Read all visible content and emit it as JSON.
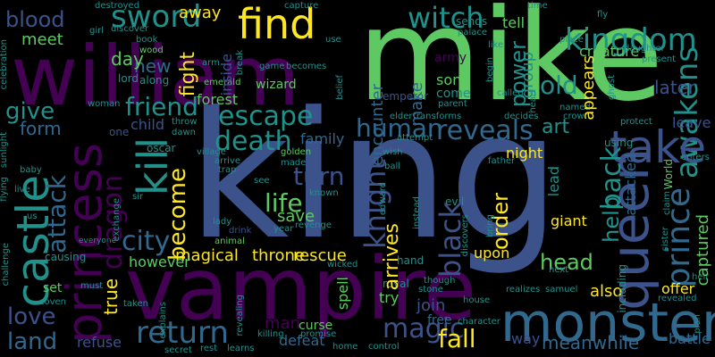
{
  "palette": {
    "background": "#000000",
    "dark_purple": "#440154",
    "indigo": "#3b528b",
    "blue": "#31688e",
    "teal": "#21918c",
    "green": "#35b779",
    "lime": "#5ec962",
    "yellow": "#fde725"
  },
  "words": {
    "king": "king",
    "mike": "mike",
    "william": "william",
    "vampire": "vampire",
    "monster": "monster",
    "princess": "princess",
    "castle": "castle",
    "queen": "queen",
    "kill": "kill",
    "take": "take",
    "find": "find",
    "kingdom": "kingdom",
    "sword": "sword",
    "witch": "witch",
    "away": "away",
    "escape": "escape",
    "death": "death",
    "reveals": "reveals",
    "return": "return",
    "human": "human",
    "life": "life",
    "turn": "turn",
    "city": "city",
    "friend": "friend",
    "magic": "magic",
    "fall": "fall",
    "black": "black",
    "prince": "prince",
    "knight": "knight",
    "dragon": "dragon",
    "attack": "attack",
    "become": "become",
    "help": "help",
    "back": "back",
    "order": "order",
    "blood": "blood",
    "meet": "meet",
    "give": "give",
    "form": "form",
    "love": "love",
    "land": "land",
    "power": "power",
    "old": "old",
    "arrives": "arrives",
    "save": "save",
    "fight": "fight",
    "meanwhile": "meanwhile",
    "captured": "captured",
    "head": "head",
    "awakens": "awakens",
    "rescue": "rescue",
    "throne": "throne",
    "magical": "magical",
    "true": "true",
    "offer": "offer",
    "also": "also",
    "later": "later",
    "art": "art",
    "new": "new",
    "day": "day",
    "forest": "forest",
    "child": "child",
    "family": "family",
    "join": "join",
    "man": "man",
    "upon": "upon",
    "giant": "giant",
    "night": "night",
    "however": "however",
    "defeat": "defeat",
    "free": "free",
    "curse": "curse",
    "battle": "battle",
    "refuse": "refuse",
    "way": "way",
    "creature": "creature",
    "group": "group",
    "appears": "appears",
    "tell": "tell",
    "son": "son",
    "come": "come",
    "army": "army",
    "encounter": "encounter",
    "make": "make",
    "inside": "inside",
    "wizard": "wizard",
    "spell": "spell",
    "try": "try",
    "leave": "leave",
    "set": "set",
    "attacked": "attacked",
    "lead": "lead",
    "including": "including",
    "emperor": "emperor",
    "lord": "lord",
    "along": "along",
    "oscar": "oscar",
    "sends": "sends",
    "hand": "hand",
    "evil": "evil",
    "transforms": "transforms",
    "parent": "parent",
    "world": "World",
    "power2": "power",
    "capture": "capture",
    "destroyed": "destroyed",
    "girl": "girl",
    "discover": "discover",
    "book": "book",
    "wood": "wood",
    "arm": "arm",
    "emerald": "emerald",
    "woman": "woman",
    "one": "one",
    "celebration": "celebration",
    "sunlight": "sunlight",
    "flying": "flying",
    "baby": "baby",
    "live": "live",
    "us": "us",
    "challenge": "challenge",
    "causing": "causing",
    "must": "must",
    "coven": "coven",
    "taken": "taken",
    "explains": "explains",
    "secret": "secret",
    "rest": "rest",
    "learns": "learns",
    "killing": "killing",
    "promise": "promise",
    "revealing": "revealing",
    "home": "home",
    "control": "control",
    "character": "character",
    "house": "house",
    "stone": "stone",
    "though": "though",
    "royal": "royal",
    "wicked": "wicked",
    "revenge": "revenge",
    "animal": "animal",
    "year": "year",
    "drink": "drink",
    "lady": "lady",
    "trap": "trap",
    "arrive": "arrive",
    "village": "village",
    "sir": "sir",
    "dawn": "dawn",
    "throw": "throw",
    "exchange": "exchange",
    "made": "made",
    "golden": "golden",
    "see": "see",
    "known": "known",
    "wish": "wish",
    "ball": "ball",
    "edward": "edward",
    "instead": "instead",
    "discovers": "discovers",
    "bring": "bring",
    "attempt": "attempt",
    "father": "father",
    "elder": "elder",
    "belief": "belief",
    "palace": "palace",
    "begin": "begin",
    "called": "called",
    "decides": "decides",
    "like": "like",
    "game": "game",
    "becomes": "becomes",
    "use": "use",
    "break": "break",
    "fly": "fly",
    "place": "place",
    "daughter": "daughter",
    "time": "time",
    "ghost": "ghost",
    "heart": "heart",
    "crown": "crown",
    "named": "named",
    "present": "present",
    "protect": "protect",
    "using": "using",
    "enters": "enters",
    "claim": "claim",
    "sister": "sister",
    "next": "next",
    "realizes": "realizes",
    "samuel": "samuel",
    "revealed": "revealed",
    "heir": "heir",
    "plan": "plan",
    "fire": "fire"
  }
}
